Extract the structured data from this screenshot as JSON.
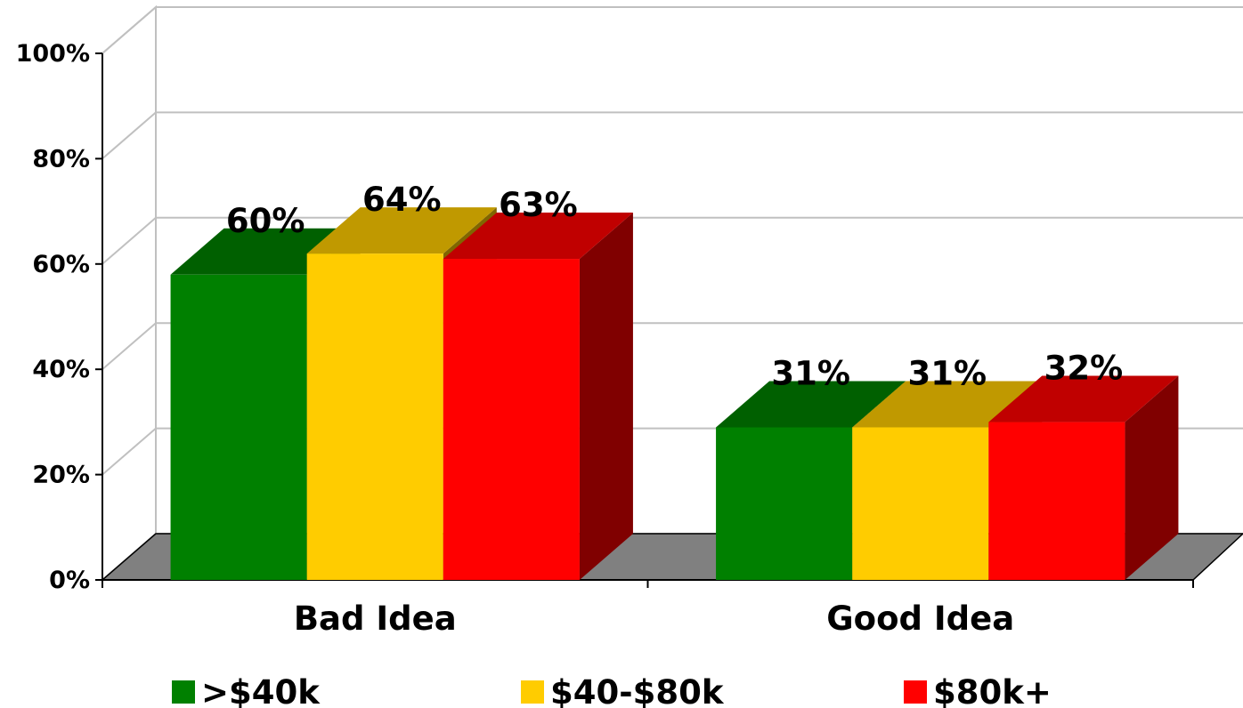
{
  "chart_data": {
    "type": "bar",
    "style": "3d-clustered",
    "categories": [
      "Bad Idea",
      "Good Idea"
    ],
    "series": [
      {
        "name": ">$40k",
        "values": [
          60,
          31
        ],
        "labels": [
          "60%",
          "31%"
        ],
        "color": "#008000",
        "top_color": "#006000",
        "side_color": "#004000"
      },
      {
        "name": "$40-$80k",
        "values": [
          64,
          31
        ],
        "labels": [
          "64%",
          "31%"
        ],
        "color": "#ffcc00",
        "top_color": "#c09900",
        "side_color": "#806600"
      },
      {
        "name": "$80k+",
        "values": [
          63,
          32
        ],
        "labels": [
          "63%",
          "32%"
        ],
        "color": "#ff0000",
        "top_color": "#c00000",
        "side_color": "#800000"
      }
    ],
    "yticks": [
      0,
      20,
      40,
      60,
      80,
      100
    ],
    "ytick_labels": [
      "0%",
      "20%",
      "40%",
      "60%",
      "80%",
      "100%"
    ],
    "ylim": [
      0,
      100
    ],
    "grid": true,
    "legend_position": "bottom",
    "floor_color": "#808080",
    "title": "",
    "xlabel": "",
    "ylabel": ""
  }
}
